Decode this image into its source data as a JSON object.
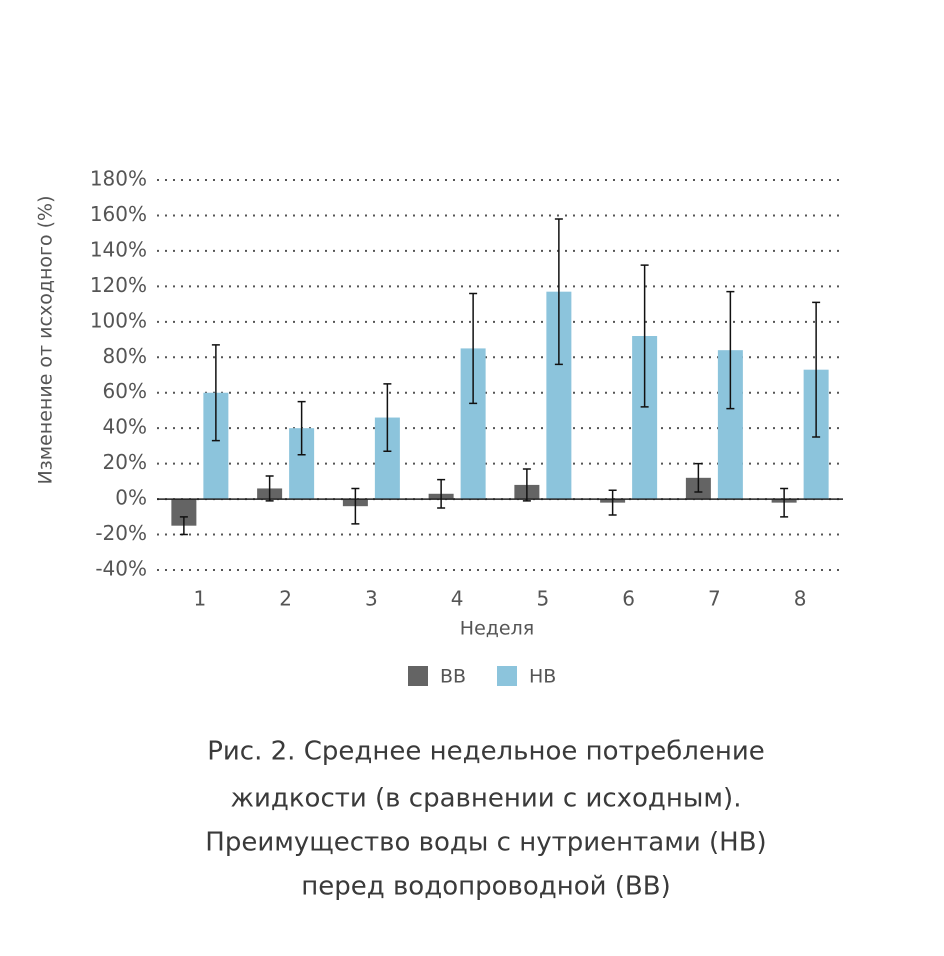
{
  "chart_data": {
    "type": "bar",
    "y_label": "Изменение от исходного (%)",
    "x_label": "Неделя",
    "categories": [
      "1",
      "2",
      "3",
      "4",
      "5",
      "6",
      "7",
      "8"
    ],
    "series": [
      {
        "name": "ВВ",
        "color": "#646464",
        "values": [
          -15,
          6,
          -4,
          3,
          8,
          -2,
          12,
          -2
        ],
        "errors": [
          5,
          7,
          10,
          8,
          9,
          7,
          8,
          8
        ]
      },
      {
        "name": "НВ",
        "color": "#8cc4dc",
        "values": [
          60,
          40,
          46,
          85,
          117,
          92,
          84,
          73
        ],
        "errors": [
          27,
          15,
          19,
          31,
          41,
          40,
          33,
          38
        ]
      }
    ],
    "ylim": [
      -40,
      180
    ],
    "yticks": [
      {
        "value": -40,
        "label": "-40%"
      },
      {
        "value": -20,
        "label": "-20%"
      },
      {
        "value": 0,
        "label": "0%"
      },
      {
        "value": 20,
        "label": "20%"
      },
      {
        "value": 40,
        "label": "40%"
      },
      {
        "value": 60,
        "label": "60%"
      },
      {
        "value": 80,
        "label": "80%"
      },
      {
        "value": 100,
        "label": "100%"
      },
      {
        "value": 120,
        "label": "120%"
      },
      {
        "value": 140,
        "label": "140%"
      },
      {
        "value": 160,
        "label": "160%"
      },
      {
        "value": 180,
        "label": "180%"
      }
    ],
    "grid": true
  },
  "caption": [
    "Рис. 2. Среднее недельное потребление",
    "жидкости (в сравнении с исходным).",
    "Преимущество воды с нутриентами (НВ)",
    "перед водопроводной (ВВ)"
  ]
}
